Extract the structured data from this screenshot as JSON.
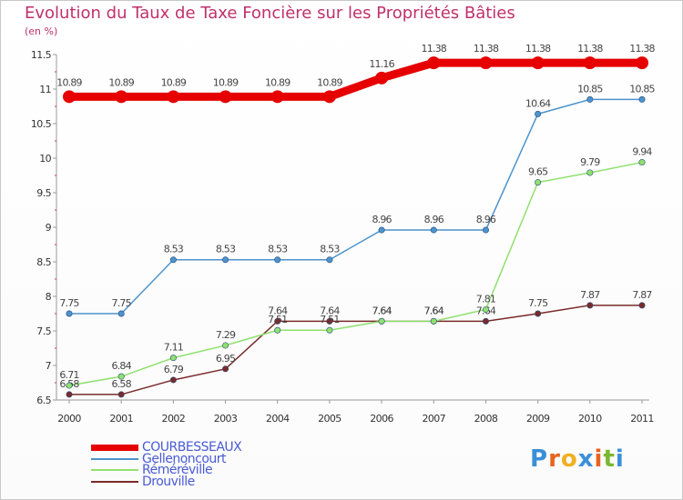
{
  "title": "Evolution du Taux de Taxe Foncière sur les Propriétés Bâties",
  "unit_label": "(en %)",
  "logo": {
    "letters": [
      "P",
      "r",
      "o",
      "x",
      "i",
      "t",
      "i"
    ],
    "colors": [
      "#3a8fd8",
      "#e8641e",
      "#f0b020",
      "#3a8fd8",
      "#e8641e",
      "#7ab830",
      "#3a8fd8"
    ]
  },
  "chart_data": {
    "type": "line",
    "title": "Evolution du Taux de Taxe Foncière sur les Propriétés Bâties",
    "ylabel": "(en %)",
    "xlabel": "",
    "x": [
      "2000",
      "2001",
      "2002",
      "2003",
      "2004",
      "2005",
      "2006",
      "2007",
      "2008",
      "2009",
      "2010",
      "2011"
    ],
    "ylim": [
      6.5,
      11.5
    ],
    "yticks": [
      "6.5",
      "7",
      "7.5",
      "8",
      "8.5",
      "9",
      "9.5",
      "10",
      "10.5",
      "11",
      "11.5"
    ],
    "grid": false,
    "series": [
      {
        "name": "COURBESSEAUX",
        "color": "#e60000",
        "values": [
          10.89,
          10.89,
          10.89,
          10.89,
          10.89,
          10.89,
          11.16,
          11.38,
          11.38,
          11.38,
          11.38,
          11.38
        ],
        "labels": [
          "10.89",
          "10.89",
          "10.89",
          "10.89",
          "10.89",
          "10.89",
          "11.16",
          "11.38",
          "11.38",
          "11.38",
          "11.38",
          "11.38"
        ]
      },
      {
        "name": "Gellenoncourt",
        "color": "#4d93cc",
        "values": [
          7.75,
          7.75,
          8.53,
          8.53,
          8.53,
          8.53,
          8.96,
          8.96,
          8.96,
          10.64,
          10.85,
          10.85
        ],
        "labels": [
          "7.75",
          "7.75",
          "8.53",
          "8.53",
          "8.53",
          "8.53",
          "8.96",
          "8.96",
          "8.96",
          "10.64",
          "10.85",
          "10.85"
        ]
      },
      {
        "name": "Réméréville",
        "color": "#90e070",
        "values": [
          6.71,
          6.84,
          7.11,
          7.29,
          7.51,
          7.51,
          7.64,
          7.64,
          7.81,
          9.65,
          9.79,
          9.94
        ],
        "labels": [
          "6.71",
          "6.84",
          "7.11",
          "7.29",
          "7.51",
          "7.51",
          "7.64",
          "7.64",
          "7.81",
          "9.65",
          "9.79",
          "9.94"
        ]
      },
      {
        "name": "Drouville",
        "color": "#7a2a2a",
        "values": [
          6.58,
          6.58,
          6.79,
          6.95,
          7.64,
          7.64,
          7.64,
          7.64,
          7.64,
          7.75,
          7.87,
          7.87
        ],
        "labels": [
          "6.58",
          "6.58",
          "6.79",
          "6.95",
          "7.64",
          "7.64",
          "7.64",
          "7.64",
          "7.64",
          "7.75",
          "7.87",
          "7.87"
        ]
      }
    ],
    "legend_position": "bottom-left"
  }
}
